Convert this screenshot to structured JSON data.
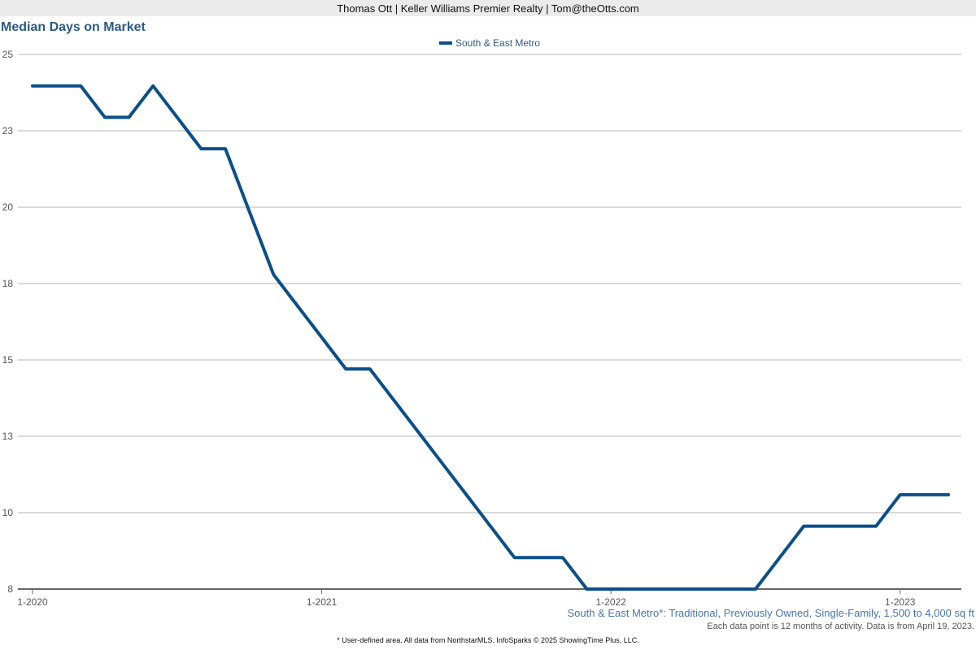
{
  "header": {
    "text": "Thomas Ott | Keller Williams Premier Realty | Tom@theOtts.com"
  },
  "footer": {
    "subtitle": "South & East Metro*: Traditional, Previously Owned, Single-Family, 1,500 to 4,000 sq ft",
    "note": "Each data point is 12 months of activity. Data is from April 19, 2023.",
    "source": "* User-defined area. All data from NorthstarMLS. InfoSparks © 2025 ShowingTime Plus, LLC."
  },
  "chart_data": {
    "type": "line",
    "title": "Median Days on Market",
    "xlabel": "",
    "ylabel": "",
    "x_ticks": [
      "1-2020",
      "1-2021",
      "1-2022",
      "1-2023"
    ],
    "y_ticks": [
      "25",
      "23",
      "20",
      "18",
      "15",
      "13",
      "10",
      "8"
    ],
    "ylim": [
      8,
      25
    ],
    "legend_position": "top-center",
    "grid": true,
    "series": [
      {
        "name": "South & East Metro",
        "color": "#0b4f8a",
        "x": [
          "2020-01",
          "2020-02",
          "2020-03",
          "2020-04",
          "2020-05",
          "2020-06",
          "2020-07",
          "2020-08",
          "2020-09",
          "2020-10",
          "2020-11",
          "2020-12",
          "2021-01",
          "2021-02",
          "2021-03",
          "2021-04",
          "2021-05",
          "2021-06",
          "2021-07",
          "2021-08",
          "2021-09",
          "2021-10",
          "2021-11",
          "2021-12",
          "2022-01",
          "2022-02",
          "2022-03",
          "2022-04",
          "2022-05",
          "2022-06",
          "2022-07",
          "2022-08",
          "2022-09",
          "2022-10",
          "2022-11",
          "2022-12",
          "2023-01",
          "2023-02",
          "2023-03"
        ],
        "values": [
          24,
          24,
          24,
          23,
          23,
          24,
          23,
          22,
          22,
          20,
          18,
          17,
          16,
          15,
          15,
          14,
          13,
          12,
          11,
          10,
          9,
          9,
          9,
          8,
          8,
          8,
          8,
          8,
          8,
          8,
          8,
          9,
          10,
          10,
          10,
          10,
          11,
          11,
          11
        ]
      }
    ]
  }
}
